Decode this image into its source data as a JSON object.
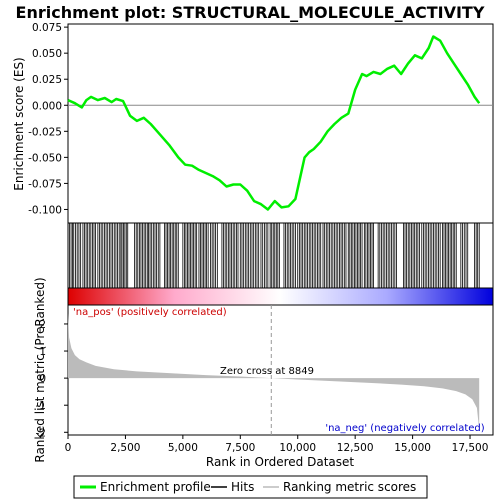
{
  "chart_data": {
    "type": "line",
    "title": "Enrichment plot: STRUCTURAL_MOLECULE_ACTIVITY",
    "xlabel": "Rank in Ordered Dataset",
    "xlim": [
      0,
      18500
    ],
    "x_ticks": [
      0,
      2500,
      5000,
      7500,
      10000,
      12500,
      15000,
      17500
    ],
    "x_tick_labels": [
      "0",
      "2,500",
      "5,000",
      "7,500",
      "10,000",
      "12,500",
      "15,000",
      "17,500"
    ],
    "enrichment_panel": {
      "ylabel": "Enrichment score (ES)",
      "ylim": [
        -0.113,
        0.078
      ],
      "y_ticks": [
        -0.1,
        -0.075,
        -0.05,
        -0.025,
        0.0,
        0.025,
        0.05,
        0.075
      ],
      "y_tick_labels": [
        "-0.100",
        "-0.075",
        "-0.050",
        "-0.025",
        "0.000",
        "0.025",
        "0.050",
        "0.075"
      ],
      "series": [
        {
          "name": "Enrichment profile",
          "color": "#00ee00",
          "x": [
            0,
            300,
            600,
            800,
            1000,
            1300,
            1600,
            1900,
            2100,
            2400,
            2700,
            3000,
            3300,
            3600,
            4000,
            4400,
            4800,
            5100,
            5400,
            5700,
            6000,
            6300,
            6600,
            6900,
            7200,
            7500,
            7800,
            8100,
            8400,
            8700,
            9000,
            9300,
            9600,
            9900,
            10100,
            10300,
            10500,
            10700,
            11000,
            11300,
            11600,
            11900,
            12200,
            12500,
            12800,
            13000,
            13300,
            13600,
            13900,
            14200,
            14500,
            14800,
            15100,
            15400,
            15700,
            15900,
            16200,
            16500,
            16800,
            17100,
            17400,
            17700,
            17900
          ],
          "y": [
            0.005,
            0.002,
            -0.002,
            0.005,
            0.008,
            0.005,
            0.007,
            0.003,
            0.006,
            0.004,
            -0.01,
            -0.015,
            -0.012,
            -0.018,
            -0.028,
            -0.038,
            -0.05,
            -0.057,
            -0.058,
            -0.062,
            -0.065,
            -0.068,
            -0.072,
            -0.078,
            -0.076,
            -0.076,
            -0.082,
            -0.092,
            -0.095,
            -0.1,
            -0.092,
            -0.098,
            -0.097,
            -0.09,
            -0.07,
            -0.05,
            -0.045,
            -0.042,
            -0.035,
            -0.025,
            -0.018,
            -0.012,
            -0.008,
            0.015,
            0.03,
            0.028,
            0.032,
            0.03,
            0.035,
            0.038,
            0.03,
            0.04,
            0.048,
            0.045,
            0.055,
            0.066,
            0.062,
            0.05,
            0.04,
            0.03,
            0.02,
            0.008,
            0.002
          ]
        }
      ]
    },
    "hits_panel": {
      "legend_name": "Hits",
      "hit_bands": [
        [
          0,
          200
        ],
        [
          250,
          550
        ],
        [
          650,
          1200
        ],
        [
          1300,
          2300
        ],
        [
          2350,
          2600
        ],
        [
          2900,
          3450
        ],
        [
          3500,
          4000
        ],
        [
          4200,
          4800
        ],
        [
          5000,
          5600
        ],
        [
          5700,
          6100
        ],
        [
          6200,
          6500
        ],
        [
          6700,
          7400
        ],
        [
          7500,
          8300
        ],
        [
          8400,
          8700
        ],
        [
          8800,
          9200
        ],
        [
          9400,
          9900
        ],
        [
          10000,
          11000
        ],
        [
          11100,
          12100
        ],
        [
          12200,
          12800
        ],
        [
          12900,
          13300
        ],
        [
          13500,
          14300
        ],
        [
          14600,
          15300
        ],
        [
          15400,
          16200
        ],
        [
          16300,
          16900
        ],
        [
          17100,
          17400
        ],
        [
          17700,
          17900
        ]
      ]
    },
    "gradient_bar": {
      "gradient": [
        "#dd0000",
        "#ffaacc",
        "#ffffff",
        "#aaaaff",
        "#0000dd"
      ],
      "label_pos": "'na_pos' (positively correlated)",
      "label_neg": "'na_neg' (negatively correlated)",
      "label_pos_color": "#cc0000",
      "label_neg_color": "#0000cc"
    },
    "ranked_panel": {
      "ylabel": "Ranked list metric (PreRanked)",
      "ylim": [
        -2.1,
        2.7
      ],
      "y_ticks": [
        -2,
        -1,
        0,
        1,
        2
      ],
      "y_tick_labels": [
        "-2",
        "-1",
        "0",
        "1",
        "2"
      ],
      "series": [
        {
          "name": "Ranking metric scores",
          "color": "#bbbbbb",
          "x": [
            0,
            50,
            150,
            300,
            500,
            800,
            1200,
            2000,
            3000,
            4500,
            6000,
            7500,
            8849,
            10000,
            11500,
            13000,
            14500,
            15500,
            16300,
            16900,
            17300,
            17600,
            17800,
            17900
          ],
          "y": [
            2.4,
            1.5,
            1.1,
            0.85,
            0.7,
            0.58,
            0.45,
            0.33,
            0.25,
            0.18,
            0.11,
            0.06,
            0.0,
            -0.05,
            -0.11,
            -0.17,
            -0.24,
            -0.3,
            -0.38,
            -0.48,
            -0.6,
            -0.78,
            -1.1,
            -1.9
          ]
        }
      ],
      "zero_cross_x": 8849,
      "zero_cross_label": "Zero cross at 8849"
    },
    "legend": {
      "items": [
        {
          "name": "Enrichment profile",
          "color": "#00ee00"
        },
        {
          "name": "Hits",
          "color": "#000000"
        },
        {
          "name": "Ranking metric scores",
          "color": "#bbbbbb"
        }
      ],
      "placement": "bottom"
    }
  }
}
